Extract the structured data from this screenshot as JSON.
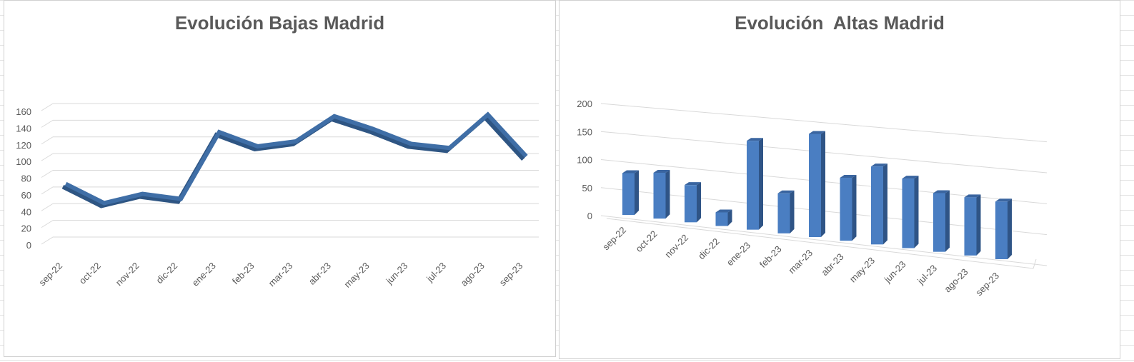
{
  "chart_data": [
    {
      "type": "line",
      "title": "Evolución Bajas Madrid",
      "categories": [
        "sep-22",
        "oct-22",
        "nov-22",
        "dic-22",
        "ene-23",
        "feb-23",
        "mar-23",
        "abr-23",
        "may-23",
        "jun-23",
        "jul-23",
        "ago-23",
        "sep-23"
      ],
      "values": [
        68,
        45,
        56,
        50,
        130,
        113,
        119,
        149,
        134,
        116,
        111,
        151,
        101
      ],
      "yticks": [
        0,
        20,
        40,
        60,
        80,
        100,
        120,
        140,
        160
      ],
      "ylim": [
        0,
        160
      ],
      "grid": true,
      "legend": "none",
      "colors": {
        "line": "#3F6EA6",
        "grid": "#d9d9d9",
        "text": "#595959"
      }
    },
    {
      "type": "bar",
      "title": "Evolución  Altas Madrid",
      "categories": [
        "sep-22",
        "oct-22",
        "nov-22",
        "dic-22",
        "ene-23",
        "feb-23",
        "mar-23",
        "abr-23",
        "may-23",
        "jun-23",
        "jul-23",
        "ago-23",
        "sep-23"
      ],
      "values": [
        75,
        83,
        68,
        25,
        165,
        75,
        195,
        120,
        150,
        135,
        115,
        115,
        115
      ],
      "yticks": [
        0,
        50,
        100,
        150,
        200
      ],
      "ylim": [
        0,
        200
      ],
      "grid": true,
      "legend": "none",
      "colors": {
        "bar_front": "#4A7EC2",
        "bar_side": "#2F5486",
        "bar_top": "#3A65A0",
        "grid": "#d9d9d9",
        "text": "#595959"
      }
    }
  ]
}
